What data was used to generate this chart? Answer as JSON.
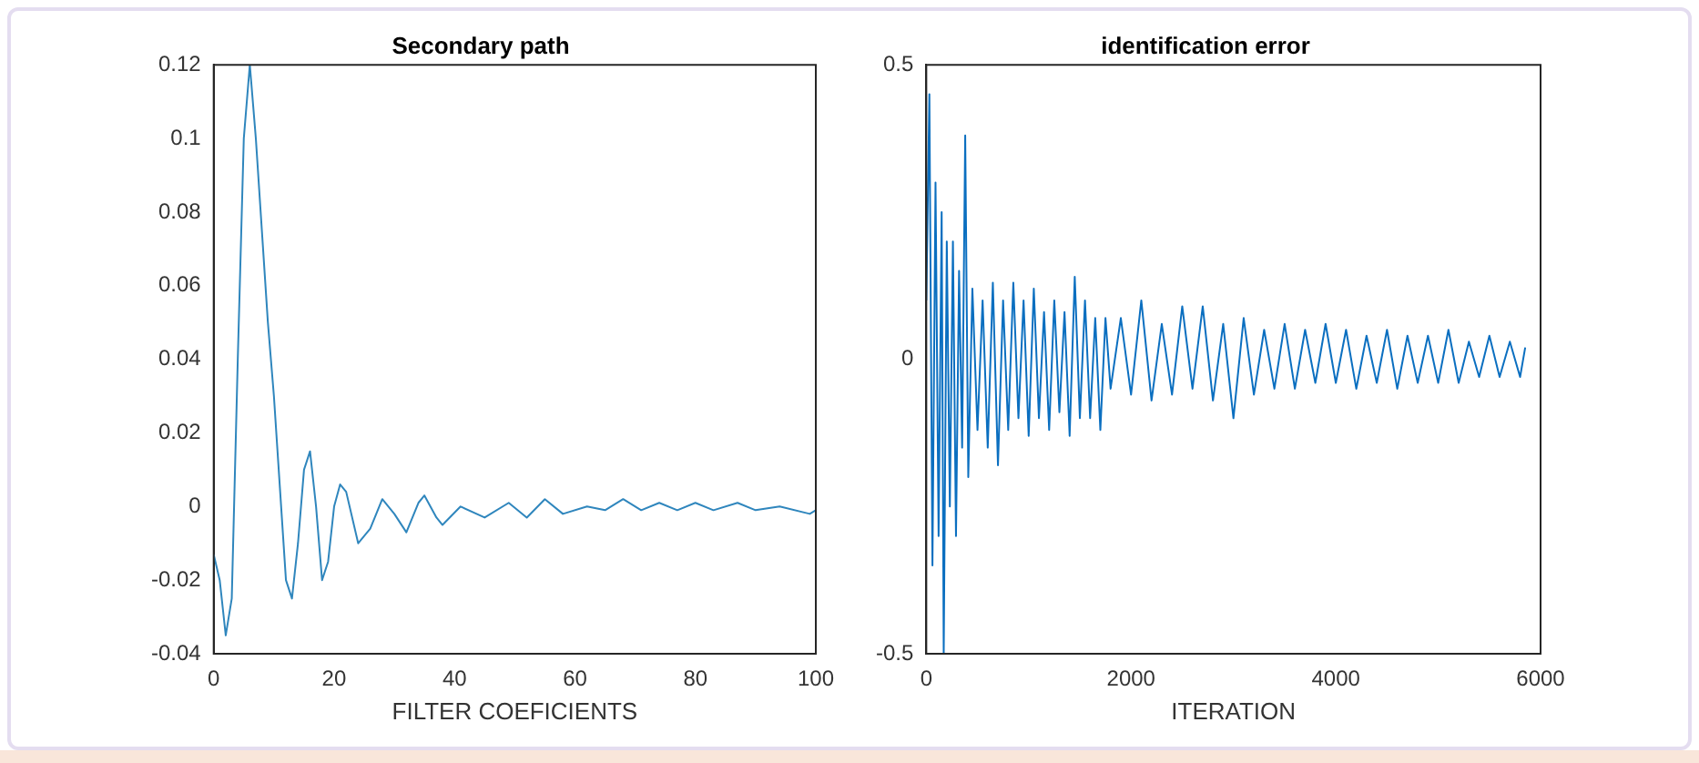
{
  "chart_data": [
    {
      "type": "line",
      "title": "Secondary path",
      "xlabel": "FILTER COEFICIENTS",
      "xlim": [
        0,
        100
      ],
      "xticks": [
        0,
        20,
        40,
        60,
        80,
        100
      ],
      "ylim": [
        -0.04,
        0.12
      ],
      "yticks": [
        -0.04,
        -0.02,
        0,
        0.02,
        0.04,
        0.06,
        0.08,
        0.1,
        0.12
      ],
      "grid": false,
      "legend": false,
      "series": [
        {
          "color": "#2f86bd",
          "x": [
            0,
            1,
            2,
            3,
            4,
            5,
            6,
            7,
            8,
            9,
            10,
            11,
            12,
            13,
            14,
            15,
            16,
            17,
            18,
            19,
            20,
            21,
            22,
            24,
            26,
            28,
            30,
            32,
            34,
            35,
            37,
            38,
            41,
            45,
            49,
            52,
            55,
            58,
            62,
            65,
            68,
            71,
            74,
            77,
            80,
            83,
            87,
            90,
            94,
            99,
            100
          ],
          "values": [
            -0.013,
            -0.02,
            -0.035,
            -0.025,
            0.04,
            0.1,
            0.12,
            0.1,
            0.075,
            0.05,
            0.03,
            0.005,
            -0.02,
            -0.025,
            -0.01,
            0.01,
            0.015,
            0.0,
            -0.02,
            -0.015,
            0.0,
            0.006,
            0.004,
            -0.01,
            -0.006,
            0.002,
            -0.002,
            -0.007,
            0.001,
            0.003,
            -0.003,
            -0.005,
            0.0,
            -0.003,
            0.001,
            -0.003,
            0.002,
            -0.002,
            0.0,
            -0.001,
            0.002,
            -0.001,
            0.001,
            -0.001,
            0.001,
            -0.001,
            0.001,
            -0.001,
            0.0,
            -0.002,
            -0.001
          ]
        }
      ]
    },
    {
      "type": "line",
      "title": "identification error",
      "xlabel": "ITERATION",
      "xlim": [
        0,
        6000
      ],
      "xticks": [
        0,
        2000,
        4000,
        6000
      ],
      "ylim": [
        -0.5,
        0.5
      ],
      "yticks": [
        -0.5,
        0,
        0.5
      ],
      "grid": false,
      "legend": false,
      "series": [
        {
          "color": "#0b6fc0",
          "x": [
            0,
            30,
            60,
            90,
            120,
            150,
            170,
            200,
            230,
            260,
            290,
            320,
            350,
            380,
            410,
            450,
            500,
            550,
            600,
            650,
            700,
            750,
            800,
            850,
            900,
            950,
            1000,
            1050,
            1100,
            1150,
            1200,
            1250,
            1300,
            1350,
            1400,
            1450,
            1500,
            1550,
            1600,
            1650,
            1700,
            1750,
            1800,
            1900,
            2000,
            2100,
            2200,
            2300,
            2400,
            2500,
            2600,
            2700,
            2800,
            2900,
            3000,
            3100,
            3200,
            3300,
            3400,
            3500,
            3600,
            3700,
            3800,
            3900,
            4000,
            4100,
            4200,
            4300,
            4400,
            4500,
            4600,
            4700,
            4800,
            4900,
            5000,
            5100,
            5200,
            5300,
            5400,
            5500,
            5600,
            5700,
            5800,
            5850
          ],
          "values": [
            0.1,
            0.45,
            -0.35,
            0.3,
            -0.3,
            0.25,
            -0.5,
            0.2,
            -0.25,
            0.2,
            -0.3,
            0.15,
            -0.15,
            0.38,
            -0.2,
            0.12,
            -0.12,
            0.1,
            -0.15,
            0.13,
            -0.18,
            0.1,
            -0.12,
            0.13,
            -0.1,
            0.1,
            -0.13,
            0.12,
            -0.1,
            0.08,
            -0.12,
            0.1,
            -0.09,
            0.08,
            -0.13,
            0.14,
            -0.1,
            0.1,
            -0.1,
            0.07,
            -0.12,
            0.07,
            -0.05,
            0.07,
            -0.06,
            0.1,
            -0.07,
            0.06,
            -0.06,
            0.09,
            -0.05,
            0.09,
            -0.07,
            0.06,
            -0.1,
            0.07,
            -0.06,
            0.05,
            -0.05,
            0.06,
            -0.05,
            0.05,
            -0.04,
            0.06,
            -0.04,
            0.05,
            -0.05,
            0.04,
            -0.04,
            0.05,
            -0.05,
            0.04,
            -0.04,
            0.04,
            -0.04,
            0.05,
            -0.04,
            0.03,
            -0.03,
            0.04,
            -0.03,
            0.03,
            -0.03,
            0.02
          ]
        }
      ]
    }
  ]
}
